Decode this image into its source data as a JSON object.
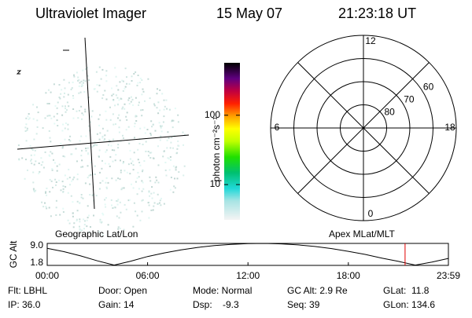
{
  "header": {
    "title": "Ultraviolet Imager",
    "date": "15 May 07",
    "time": "21:23:18 UT"
  },
  "colorbar": {
    "label": "photon cm⁻²s⁻¹",
    "log": true,
    "range": [
      3.1,
      570
    ],
    "ticks": [
      10,
      100
    ]
  },
  "polar": {
    "rlim": [
      90,
      50
    ],
    "lat_circles": [
      80,
      70,
      60
    ],
    "mlt_ticks": [
      12,
      18,
      0,
      6
    ]
  },
  "orbit": {
    "left_title": "Geographic Lat/Lon",
    "right_title": "Apex MLat/MLT",
    "ylabel": "GC Alt",
    "ylim": [
      1.8,
      9.0
    ],
    "yticks": [
      {
        "value": 9.0,
        "label": "9.0"
      },
      {
        "value": 1.8,
        "label": "1.8"
      }
    ],
    "xlim": [
      0,
      23.98
    ],
    "xticks": [
      {
        "value": 0,
        "label": "00:00"
      },
      {
        "value": 6,
        "label": "06:00"
      },
      {
        "value": 12,
        "label": "12:00"
      },
      {
        "value": 18,
        "label": "18:00"
      },
      {
        "value": 23.98,
        "label": "23:59"
      }
    ],
    "hours": [
      0,
      1,
      2,
      3,
      4,
      5,
      6,
      7,
      8,
      9,
      10,
      11,
      12,
      13,
      14,
      15,
      16,
      17,
      18,
      19,
      20,
      21,
      22,
      23,
      23.98
    ],
    "gc_alt": [
      7.4,
      6.3,
      4.9,
      3.3,
      1.9,
      3.2,
      4.7,
      5.9,
      6.9,
      7.7,
      8.3,
      8.7,
      8.95,
      9.0,
      8.85,
      8.5,
      8.0,
      7.3,
      6.4,
      5.4,
      4.2,
      3.1,
      1.9,
      2.9,
      4.1
    ],
    "current_hour": 21.39,
    "current_color": "#e00000"
  },
  "info": {
    "rows": [
      [
        "Flt: LBHL",
        "Door: Open",
        "Mode: Normal",
        "GC Alt: 2.9 Re",
        "GLat:  11.8"
      ],
      [
        "IP: 36.0",
        "Gain: 14",
        "Dsp:    -9.3",
        "Seq: 39",
        "GLon: 134.6"
      ]
    ]
  }
}
